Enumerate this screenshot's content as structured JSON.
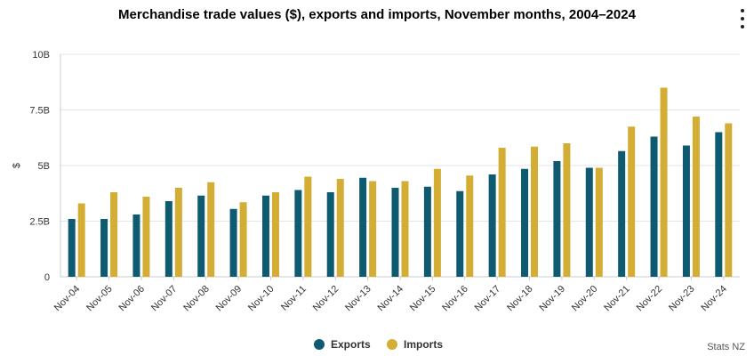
{
  "title": "Merchandise trade values ($), exports and imports, November months, 2004–2024",
  "menu": {
    "icon": "more-vertical-icon"
  },
  "legend": {
    "exports_label": "Exports",
    "imports_label": "Imports"
  },
  "credit": "Stats NZ",
  "colors": {
    "exports": "#0e5a70",
    "imports": "#d3ad34",
    "grid": "#e6e6e6",
    "axis": "#cccccc"
  },
  "chart_data": {
    "type": "bar",
    "title": "Merchandise trade values ($), exports and imports, November months, 2004–2024",
    "xlabel": "",
    "ylabel": "$",
    "ylim": [
      0,
      10
    ],
    "yunit": "billion",
    "yticks": [
      {
        "value": 0,
        "label": "0"
      },
      {
        "value": 2.5,
        "label": "2.5B"
      },
      {
        "value": 5,
        "label": "5B"
      },
      {
        "value": 7.5,
        "label": "7.5B"
      },
      {
        "value": 10,
        "label": "10B"
      }
    ],
    "categories": [
      "Nov-04",
      "Nov-05",
      "Nov-06",
      "Nov-07",
      "Nov-08",
      "Nov-09",
      "Nov-10",
      "Nov-11",
      "Nov-12",
      "Nov-13",
      "Nov-14",
      "Nov-15",
      "Nov-16",
      "Nov-17",
      "Nov-18",
      "Nov-19",
      "Nov-20",
      "Nov-21",
      "Nov-22",
      "Nov-23",
      "Nov-24"
    ],
    "series": [
      {
        "name": "Exports",
        "values": [
          2.6,
          2.6,
          2.8,
          3.4,
          3.65,
          3.05,
          3.65,
          3.9,
          3.8,
          4.45,
          4.0,
          4.05,
          3.85,
          4.6,
          4.85,
          5.2,
          4.9,
          5.65,
          6.3,
          5.9,
          6.5
        ]
      },
      {
        "name": "Imports",
        "values": [
          3.3,
          3.8,
          3.6,
          4.0,
          4.25,
          3.35,
          3.8,
          4.5,
          4.4,
          4.3,
          4.3,
          4.85,
          4.55,
          5.8,
          5.85,
          6.0,
          4.9,
          6.75,
          8.5,
          7.2,
          6.9
        ]
      }
    ],
    "legend_position": "bottom-center",
    "grid": true
  }
}
